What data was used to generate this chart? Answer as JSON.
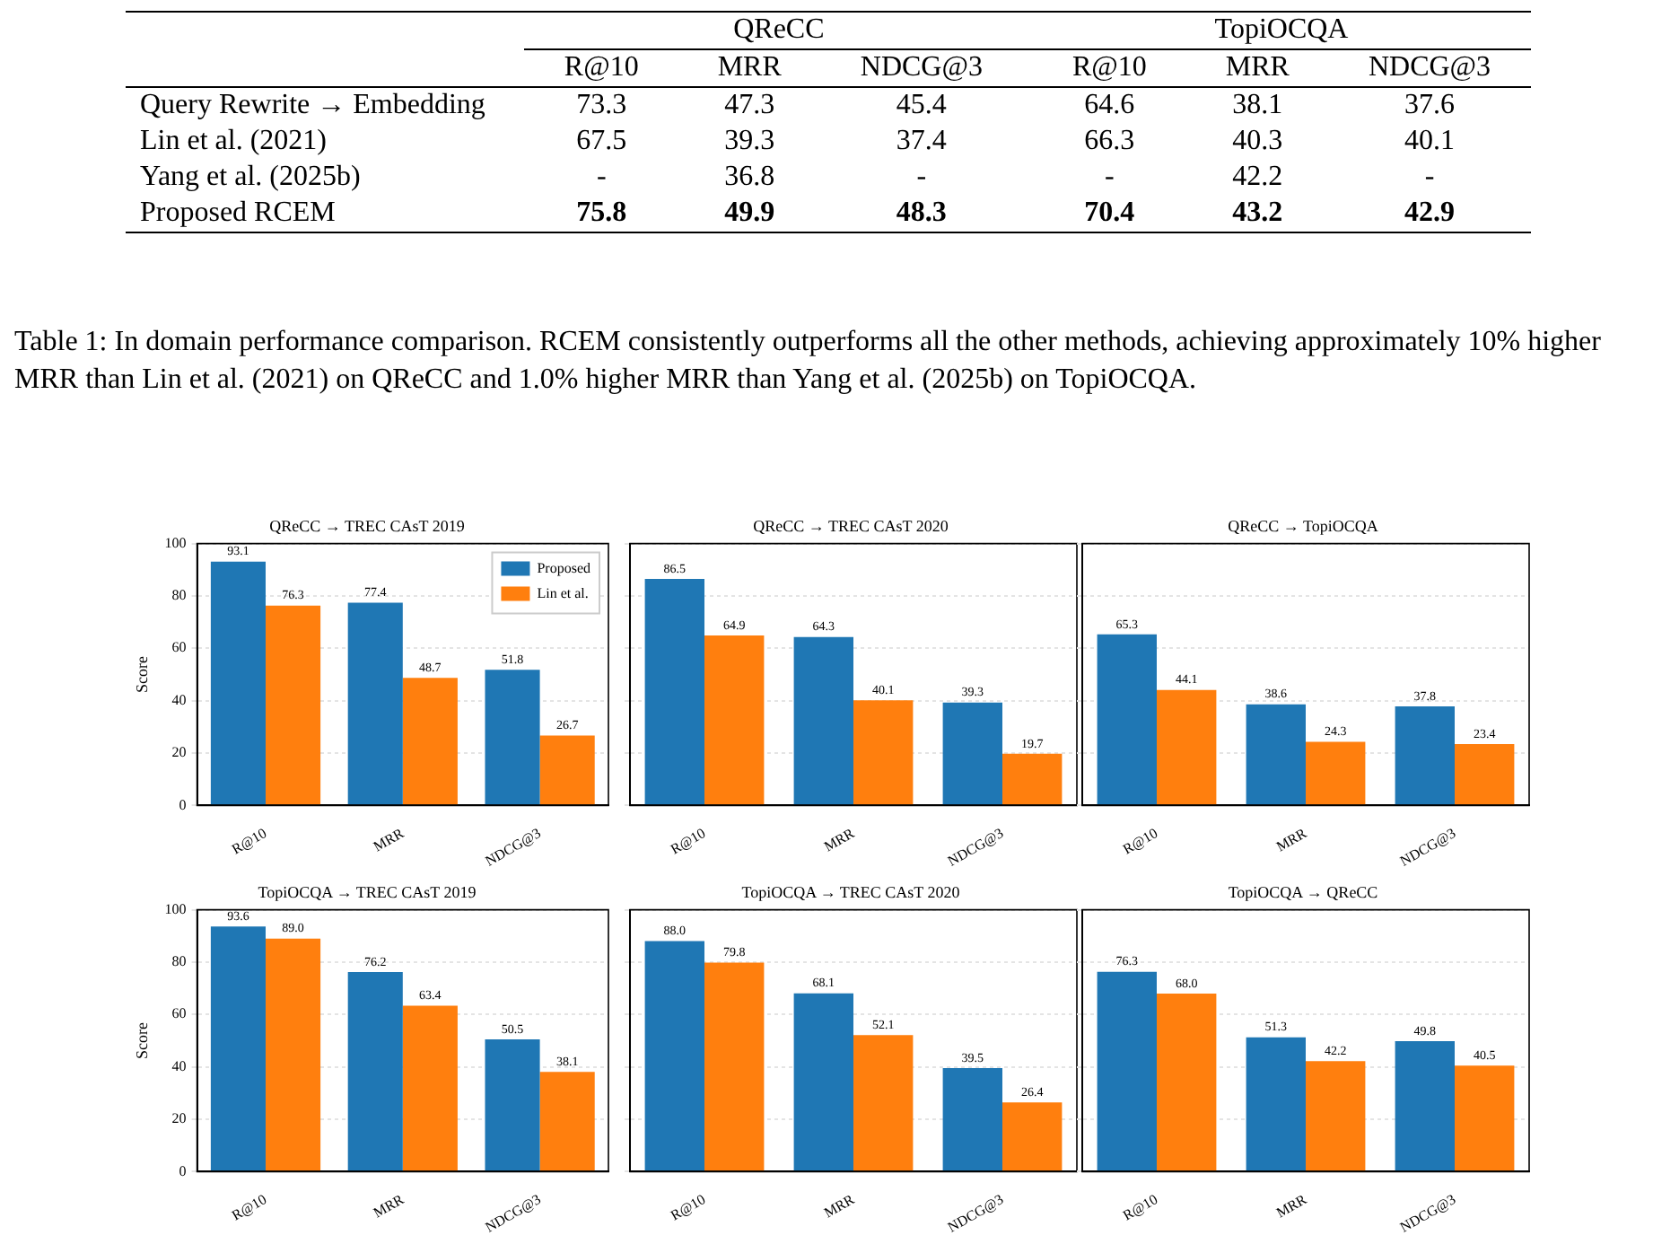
{
  "chart_data": [
    {
      "type": "heatmap",
      "categories": [
        "R@10",
        "MRR",
        "NDCG@3",
        "R@10",
        "MRR",
        "NDCG@3"
      ],
      "y_categories": [
        "Query Rewrite → Embedding",
        "Lin et al. (2021)",
        "Yang et al. (2025b)",
        "Proposed RCEM"
      ],
      "cells": [
        [
          73.3,
          47.3,
          45.4,
          64.6,
          38.1,
          37.6
        ],
        [
          67.5,
          39.3,
          37.4,
          66.3,
          40.3,
          40.1
        ],
        [
          null,
          36.8,
          null,
          null,
          42.2,
          null
        ],
        [
          75.8,
          49.9,
          48.3,
          70.4,
          43.2,
          42.9
        ]
      ],
      "cell_labels": [
        [
          "73.3",
          "47.3",
          "45.4",
          "64.6",
          "38.1",
          "37.6"
        ],
        [
          "67.5",
          "39.3",
          "37.4",
          "66.3",
          "40.3",
          "40.1"
        ],
        [
          "-",
          "36.8",
          "-",
          "-",
          "42.2",
          "-"
        ],
        [
          "75.8",
          "49.9",
          "48.3",
          "70.4",
          "43.2",
          "42.9"
        ]
      ],
      "data_labels": true,
      "annotations": [
        "QReCC",
        "TopiOCQA",
        "Table 1: In domain performance comparison. RCEM consistently outperforms all the other methods, achieving approximately 10% higher MRR than Lin et al. (2021) on QReCC and 1.0% higher MRR than Yang et al. (2025b) on TopiOCQA."
      ]
    },
    {
      "type": "bar",
      "title": "QReCC → TREC CAsT 2019",
      "ylabel": "Score",
      "categories": [
        "R@10",
        "MRR",
        "NDCG@3"
      ],
      "ylim": [
        0,
        100
      ],
      "yticks": [
        0,
        20,
        40,
        60,
        80,
        100
      ],
      "grid": "y",
      "legend": "top right",
      "series": [
        {
          "name": "Proposed",
          "color": "#1f77b4",
          "values": [
            93.1,
            77.4,
            51.8
          ],
          "value_labels": [
            "93.1",
            "77.4",
            "51.8"
          ]
        },
        {
          "name": "Lin et al.",
          "color": "#ff7f0e",
          "values": [
            76.3,
            48.7,
            26.7
          ],
          "value_labels": [
            "76.3",
            "48.7",
            "26.7"
          ]
        }
      ]
    },
    {
      "type": "bar",
      "title": "QReCC → TREC CAsT 2020",
      "categories": [
        "R@10",
        "MRR",
        "NDCG@3"
      ],
      "ylim": [
        0,
        100
      ],
      "yticks": [
        0,
        20,
        40,
        60,
        80,
        100
      ],
      "grid": "y",
      "tick_labels": "x",
      "series": [
        {
          "color": "#1f77b4",
          "values": [
            86.5,
            64.3,
            39.3
          ],
          "value_labels": [
            "86.5",
            "64.3",
            "39.3"
          ]
        },
        {
          "color": "#ff7f0e",
          "values": [
            64.9,
            40.1,
            19.7
          ],
          "value_labels": [
            "64.9",
            "40.1",
            "19.7"
          ]
        }
      ]
    },
    {
      "type": "bar",
      "title": "QReCC → TopiOCQA",
      "categories": [
        "R@10",
        "MRR",
        "NDCG@3"
      ],
      "ylim": [
        0,
        100
      ],
      "yticks": [
        0,
        20,
        40,
        60,
        80,
        100
      ],
      "grid": "y",
      "tick_labels": "x",
      "series": [
        {
          "color": "#1f77b4",
          "values": [
            65.3,
            38.6,
            37.8
          ],
          "value_labels": [
            "65.3",
            "38.6",
            "37.8"
          ]
        },
        {
          "color": "#ff7f0e",
          "values": [
            44.1,
            24.3,
            23.4
          ],
          "value_labels": [
            "44.1",
            "24.3",
            "23.4"
          ]
        }
      ]
    },
    {
      "type": "bar",
      "title": "TopiOCQA → TREC CAsT 2019",
      "ylabel": "Score",
      "categories": [
        "R@10",
        "MRR",
        "NDCG@3"
      ],
      "ylim": [
        0,
        100
      ],
      "yticks": [
        0,
        20,
        40,
        60,
        80,
        100
      ],
      "grid": "y",
      "series": [
        {
          "color": "#1f77b4",
          "values": [
            93.6,
            76.2,
            50.5
          ],
          "value_labels": [
            "93.6",
            "76.2",
            "50.5"
          ]
        },
        {
          "color": "#ff7f0e",
          "values": [
            89.0,
            63.4,
            38.1
          ],
          "value_labels": [
            "89.0",
            "63.4",
            "38.1"
          ]
        }
      ]
    },
    {
      "type": "bar",
      "title": "TopiOCQA → TREC CAsT 2020",
      "categories": [
        "R@10",
        "MRR",
        "NDCG@3"
      ],
      "ylim": [
        0,
        100
      ],
      "yticks": [
        0,
        20,
        40,
        60,
        80,
        100
      ],
      "grid": "y",
      "tick_labels": "x",
      "series": [
        {
          "color": "#1f77b4",
          "values": [
            88.0,
            68.1,
            39.5
          ],
          "value_labels": [
            "88.0",
            "68.1",
            "39.5"
          ]
        },
        {
          "color": "#ff7f0e",
          "values": [
            79.8,
            52.1,
            26.4
          ],
          "value_labels": [
            "79.8",
            "52.1",
            "26.4"
          ]
        }
      ]
    },
    {
      "type": "bar",
      "title": "TopiOCQA → QReCC",
      "categories": [
        "R@10",
        "MRR",
        "NDCG@3"
      ],
      "ylim": [
        0,
        100
      ],
      "yticks": [
        0,
        20,
        40,
        60,
        80,
        100
      ],
      "grid": "y",
      "tick_labels": "x",
      "series": [
        {
          "color": "#1f77b4",
          "values": [
            76.3,
            51.3,
            49.8
          ],
          "value_labels": [
            "76.3",
            "51.3",
            "49.8"
          ]
        },
        {
          "color": "#ff7f0e",
          "values": [
            68.0,
            42.2,
            40.5
          ],
          "value_labels": [
            "68.0",
            "42.2",
            "40.5"
          ]
        }
      ]
    }
  ]
}
